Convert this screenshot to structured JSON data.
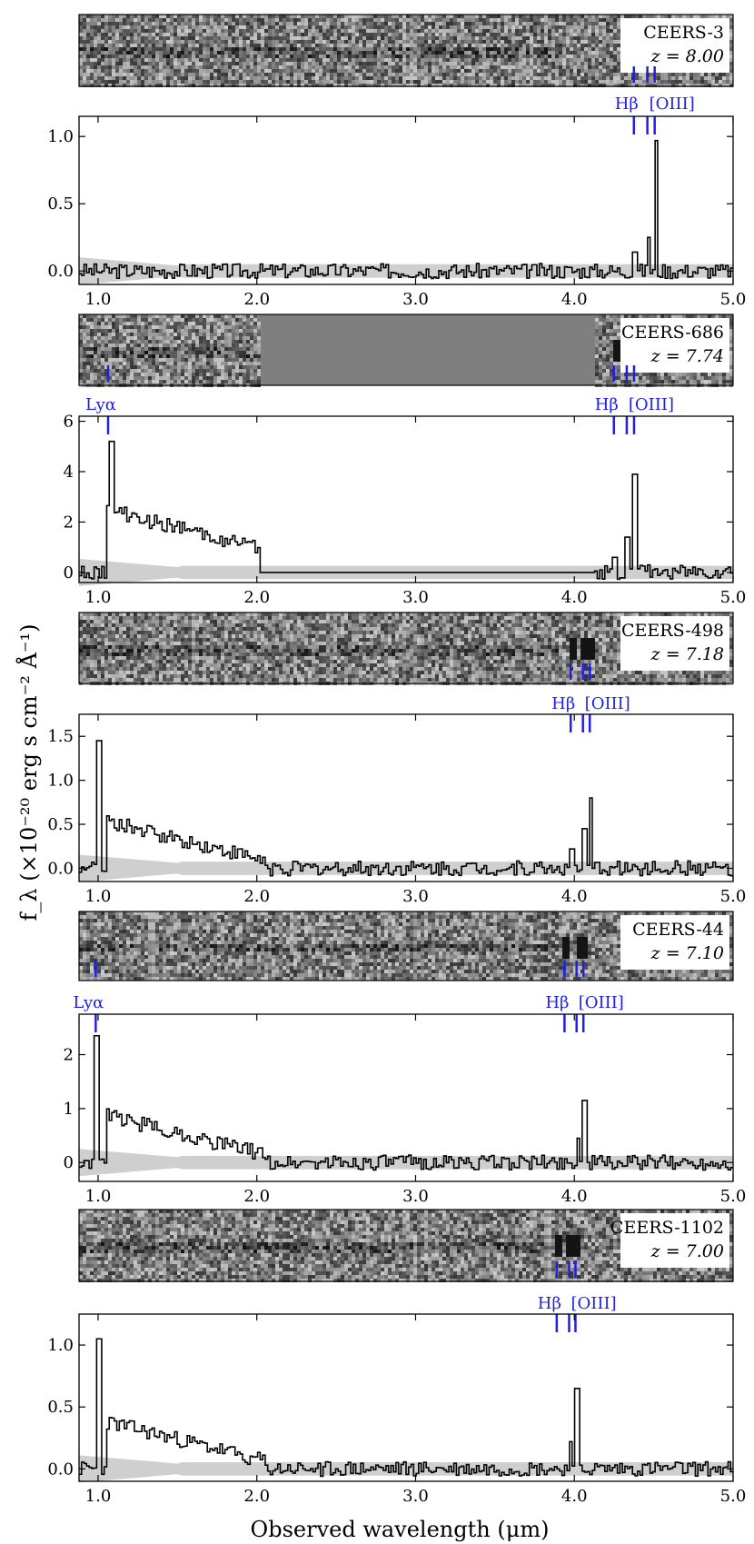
{
  "figure": {
    "xlabel": "Observed wavelength (μm)",
    "ylabel": "f_λ (×10⁻²⁰ erg s cm⁻² Å⁻¹)"
  },
  "chart_data": [
    {
      "type": "line",
      "object": "CEERS-3",
      "redshift_label": "z = 8.00",
      "xlim": [
        0.88,
        5.0
      ],
      "ylim": [
        -0.1,
        1.15
      ],
      "yticks": [
        0.0,
        0.5,
        1.0
      ],
      "ytick_labels": [
        "0.0",
        "0.5",
        "1.0"
      ],
      "xticks": [
        1.0,
        2.0,
        3.0,
        4.0,
        5.0
      ],
      "xtick_labels": [
        "1.0",
        "2.0",
        "3.0",
        "4.0",
        "5.0"
      ],
      "grid": false,
      "emission_lines": [
        {
          "label": "Hβ",
          "wavelengths": [
            4.375
          ]
        },
        {
          "label": "[OIII]",
          "wavelengths": [
            4.46,
            4.506
          ]
        }
      ],
      "continuum": 0.0,
      "noise": 0.06,
      "peaks": [
        {
          "x": 4.508,
          "y": 0.97
        },
        {
          "x": 4.46,
          "y": 0.25
        },
        {
          "x": 4.375,
          "y": 0.14
        }
      ]
    },
    {
      "type": "line",
      "object": "CEERS-686",
      "redshift_label": "z = 7.74",
      "xlim": [
        0.88,
        5.0
      ],
      "ylim": [
        -0.4,
        6.2
      ],
      "yticks": [
        0,
        2,
        4,
        6
      ],
      "ytick_labels": [
        "0",
        "2",
        "4",
        "6"
      ],
      "xticks": [
        1.0,
        2.0,
        3.0,
        4.0,
        5.0
      ],
      "xtick_labels": [
        "1.0",
        "2.0",
        "3.0",
        "4.0",
        "5.0"
      ],
      "grid": false,
      "emission_lines": [
        {
          "label": "Lyα",
          "wavelengths": [
            1.063
          ]
        },
        {
          "label": "Hβ",
          "wavelengths": [
            4.249
          ]
        },
        {
          "label": "[OIII]",
          "wavelengths": [
            4.33,
            4.376
          ]
        }
      ],
      "gap": [
        2.02,
        4.12
      ],
      "peaks": [
        {
          "x": 1.075,
          "y": 5.2
        },
        {
          "x": 4.376,
          "y": 3.9
        },
        {
          "x": 4.33,
          "y": 1.4
        },
        {
          "x": 4.249,
          "y": 0.6
        }
      ]
    },
    {
      "type": "line",
      "object": "CEERS-498",
      "redshift_label": "z = 7.18",
      "xlim": [
        0.88,
        5.0
      ],
      "ylim": [
        -0.15,
        1.75
      ],
      "yticks": [
        0.0,
        0.5,
        1.0,
        1.5
      ],
      "ytick_labels": [
        "0.0",
        "0.5",
        "1.0",
        "1.5"
      ],
      "xticks": [
        1.0,
        2.0,
        3.0,
        4.0,
        5.0
      ],
      "xtick_labels": [
        "1.0",
        "2.0",
        "3.0",
        "4.0",
        "5.0"
      ],
      "grid": false,
      "emission_lines": [
        {
          "label": "Hβ",
          "wavelengths": [
            3.977
          ]
        },
        {
          "label": "[OIII]",
          "wavelengths": [
            4.054,
            4.097
          ]
        }
      ],
      "peaks": [
        {
          "x": 1.0,
          "y": 1.45
        },
        {
          "x": 4.097,
          "y": 0.8
        },
        {
          "x": 4.054,
          "y": 0.45
        },
        {
          "x": 3.977,
          "y": 0.22
        }
      ]
    },
    {
      "type": "line",
      "object": "CEERS-44",
      "redshift_label": "z = 7.10",
      "xlim": [
        0.88,
        5.0
      ],
      "ylim": [
        -0.35,
        2.75
      ],
      "yticks": [
        0,
        1,
        2
      ],
      "ytick_labels": [
        "0",
        "1",
        "2"
      ],
      "xticks": [
        1.0,
        2.0,
        3.0,
        4.0,
        5.0
      ],
      "xtick_labels": [
        "1.0",
        "2.0",
        "3.0",
        "4.0",
        "5.0"
      ],
      "grid": false,
      "emission_lines": [
        {
          "label": "Lyα",
          "wavelengths": [
            0.985
          ]
        },
        {
          "label": "Hβ",
          "wavelengths": [
            3.938
          ]
        },
        {
          "label": "[OIII]",
          "wavelengths": [
            4.014,
            4.057
          ]
        }
      ],
      "peaks": [
        {
          "x": 0.985,
          "y": 2.35
        },
        {
          "x": 4.057,
          "y": 1.15
        },
        {
          "x": 4.014,
          "y": 0.45
        }
      ]
    },
    {
      "type": "line",
      "object": "CEERS-1102",
      "redshift_label": "z = 7.00",
      "xlim": [
        0.88,
        5.0
      ],
      "ylim": [
        -0.1,
        1.25
      ],
      "yticks": [
        0.0,
        0.5,
        1.0
      ],
      "ytick_labels": [
        "0.0",
        "0.5",
        "1.0"
      ],
      "xticks": [
        1.0,
        2.0,
        3.0,
        4.0,
        5.0
      ],
      "xtick_labels": [
        "1.0",
        "2.0",
        "3.0",
        "4.0",
        "5.0"
      ],
      "grid": false,
      "emission_lines": [
        {
          "label": "Hβ",
          "wavelengths": [
            3.889
          ]
        },
        {
          "label": "[OIII]",
          "wavelengths": [
            3.967,
            4.007
          ]
        }
      ],
      "peaks": [
        {
          "x": 1.0,
          "y": 1.05
        },
        {
          "x": 4.007,
          "y": 0.65
        },
        {
          "x": 3.967,
          "y": 0.22
        }
      ]
    }
  ],
  "colors": {
    "line_marker": "#1f1fe8",
    "spectrum": "#000000",
    "error_band": "#cfcfcf",
    "image_background": "#7f7f7f"
  }
}
